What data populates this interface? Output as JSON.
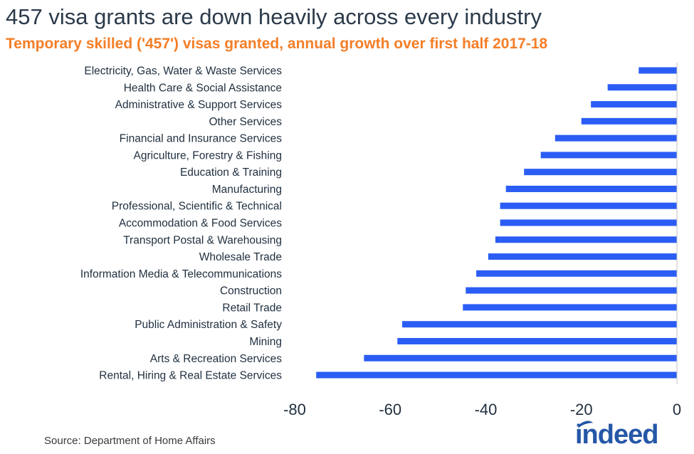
{
  "title": "457 visa grants are down heavily across every industry",
  "subtitle": "Temporary skilled ('457') visas granted, annual growth over first half 2017-18",
  "source": "Source: Department of Home Affairs",
  "logo": "indeed",
  "colors": {
    "bar": "#2b5df5",
    "title": "#2b3a4a",
    "subtitle": "#f47e27",
    "logo": "#2557a7"
  },
  "chart_data": {
    "type": "bar",
    "orientation": "horizontal",
    "categories": [
      "Electricity, Gas, Water & Waste Services",
      "Health Care & Social Assistance",
      "Administrative & Support Services",
      "Other Services",
      "Financial and Insurance Services",
      "Agriculture, Forestry & Fishing",
      "Education & Training",
      "Manufacturing",
      "Professional, Scientific & Technical",
      "Accommodation & Food Services",
      "Transport Postal & Warehousing",
      "Wholesale Trade",
      "Information Media & Telecommunications",
      "Construction",
      "Retail Trade",
      "Public Administration & Safety",
      "Mining",
      "Arts & Recreation Services",
      "Rental, Hiring & Real Estate Services"
    ],
    "values": [
      -8,
      -14.5,
      -18,
      -20,
      -25.5,
      -28.5,
      -32,
      -35.8,
      -37,
      -37,
      -38,
      -39.5,
      -42,
      -44.2,
      -44.8,
      -57.5,
      -58.5,
      -65.5,
      -75.5
    ],
    "xlim": [
      -80,
      0
    ],
    "xticks": [
      -80,
      -60,
      -40,
      -20,
      0
    ],
    "grid": false,
    "legend": "none"
  }
}
